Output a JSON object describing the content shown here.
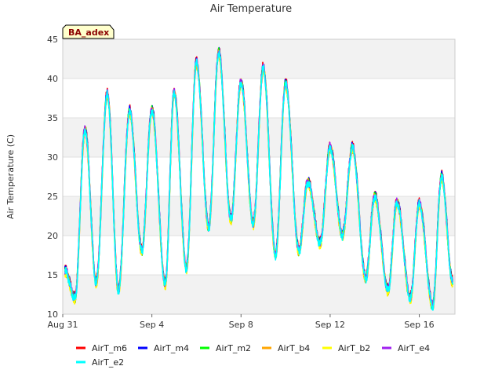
{
  "chart_data": {
    "type": "line",
    "title": "Air Temperature",
    "ylabel": "Air Temperature (C)",
    "xlabel": "",
    "badge": "BA_adex",
    "ylim": [
      10,
      45
    ],
    "yticks": [
      10,
      15,
      20,
      25,
      30,
      35,
      40,
      45
    ],
    "xlim": [
      0,
      17.6
    ],
    "xticks": [
      {
        "label": "Aug 31",
        "day": 0
      },
      {
        "label": "Sep 4",
        "day": 4
      },
      {
        "label": "Sep 8",
        "day": 8
      },
      {
        "label": "Sep 12",
        "day": 12
      },
      {
        "label": "Sep 16",
        "day": 16
      }
    ],
    "grid": true,
    "bands": "alternating gray horizontal bands",
    "legend_position": "bottom",
    "daily_extremes": {
      "minima": [
        {
          "day": 0.1,
          "value": 15.5
        },
        {
          "day": 0.55,
          "value": 12.0
        },
        {
          "day": 1.5,
          "value": 14.0
        },
        {
          "day": 2.5,
          "value": 13.0
        },
        {
          "day": 3.55,
          "value": 18.0
        },
        {
          "day": 4.6,
          "value": 13.8
        },
        {
          "day": 5.55,
          "value": 15.8
        },
        {
          "day": 6.55,
          "value": 21.0
        },
        {
          "day": 7.55,
          "value": 22.0
        },
        {
          "day": 8.55,
          "value": 21.5
        },
        {
          "day": 9.55,
          "value": 17.5
        },
        {
          "day": 10.6,
          "value": 18.0
        },
        {
          "day": 11.55,
          "value": 19.0
        },
        {
          "day": 12.55,
          "value": 20.0
        },
        {
          "day": 13.6,
          "value": 14.5
        },
        {
          "day": 14.6,
          "value": 13.0
        },
        {
          "day": 15.6,
          "value": 12.0
        },
        {
          "day": 16.6,
          "value": 11.0
        },
        {
          "day": 17.5,
          "value": 14.0
        }
      ],
      "maxima": [
        {
          "day": 1.0,
          "value": 33.5
        },
        {
          "day": 2.0,
          "value": 38.0
        },
        {
          "day": 3.0,
          "value": 35.8
        },
        {
          "day": 4.0,
          "value": 36.0
        },
        {
          "day": 5.0,
          "value": 38.2
        },
        {
          "day": 6.0,
          "value": 42.0
        },
        {
          "day": 7.0,
          "value": 43.3
        },
        {
          "day": 8.0,
          "value": 39.5
        },
        {
          "day": 9.0,
          "value": 41.3
        },
        {
          "day": 10.0,
          "value": 39.3
        },
        {
          "day": 11.0,
          "value": 26.8
        },
        {
          "day": 12.0,
          "value": 31.2
        },
        {
          "day": 13.0,
          "value": 31.2
        },
        {
          "day": 14.0,
          "value": 25.0
        },
        {
          "day": 15.0,
          "value": 24.2
        },
        {
          "day": 16.0,
          "value": 24.0
        },
        {
          "day": 17.0,
          "value": 27.5
        }
      ]
    },
    "series": [
      {
        "name": "AirT_m6",
        "color": "#ff0000",
        "offset": 0.6
      },
      {
        "name": "AirT_m4",
        "color": "#0000ff",
        "offset": 0.3
      },
      {
        "name": "AirT_m2",
        "color": "#00ff00",
        "offset": 0.0
      },
      {
        "name": "AirT_b4",
        "color": "#ffa500",
        "offset": -0.2
      },
      {
        "name": "AirT_b2",
        "color": "#ffff00",
        "offset": -0.4
      },
      {
        "name": "AirT_e4",
        "color": "#a020f0",
        "offset": 0.2
      },
      {
        "name": "AirT_e2",
        "color": "#00ffff",
        "offset": -0.1
      }
    ]
  }
}
